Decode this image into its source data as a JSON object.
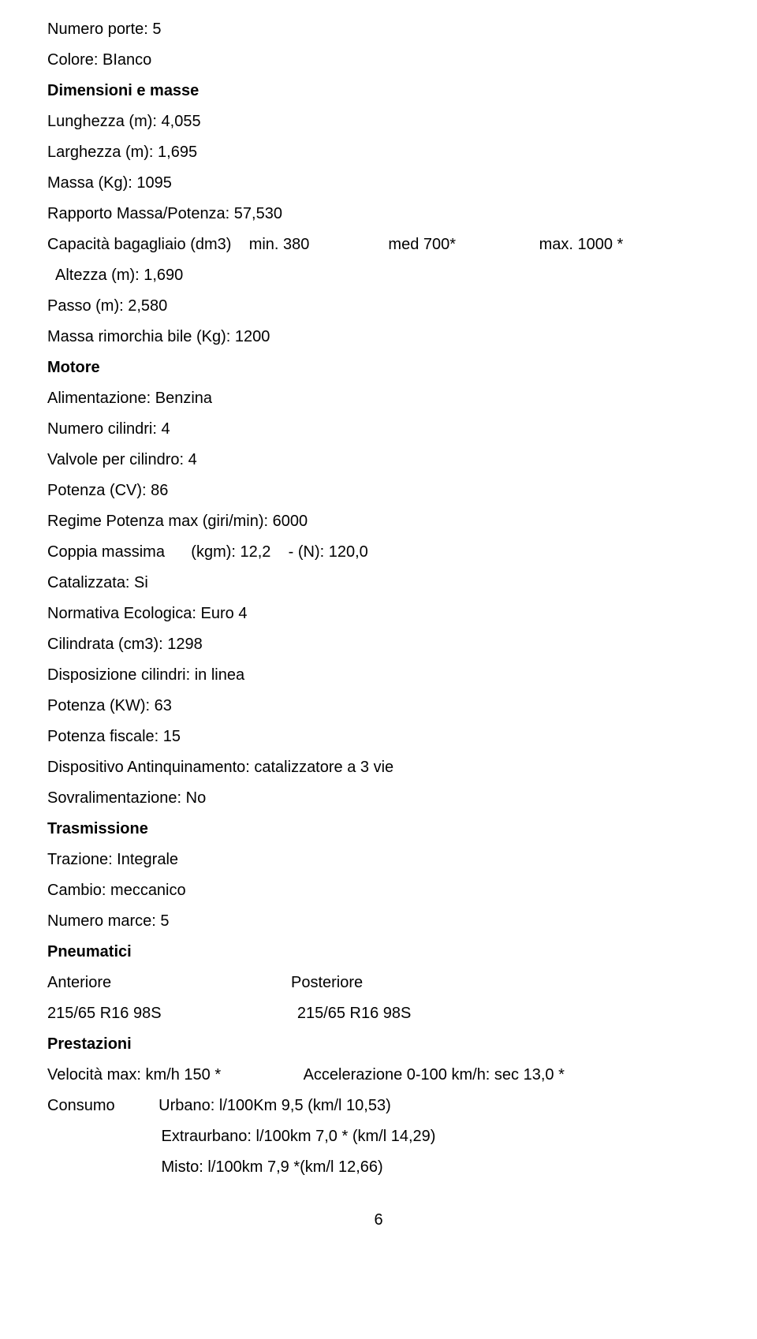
{
  "lines": {
    "l1": "Numero porte: 5",
    "l2": "Colore: BIanco",
    "l3": "Dimensioni e masse",
    "l4": "Lunghezza (m): 4,055",
    "l5": "Larghezza (m): 1,695",
    "l6": "Massa (Kg): 1095",
    "l7": "Rapporto Massa/Potenza: 57,530",
    "l8": "Capacità bagagliaio (dm3)    min. 380                  med 700*                   max. 1000 *",
    "l9": "  Altezza (m): 1,690",
    "l10": "Passo (m): 2,580",
    "l11": "Massa rimorchia bile (Kg): 1200",
    "l12": "Motore",
    "l13": "Alimentazione: Benzina",
    "l14": "Numero cilindri: 4",
    "l15": "Valvole per cilindro: 4",
    "l16": "Potenza (CV): 86",
    "l17": "Regime Potenza max (giri/min): 6000",
    "l18": "Coppia massima      (kgm): 12,2    - (N): 120,0",
    "l19": "Catalizzata: Si",
    "l20": "Normativa Ecologica: Euro 4",
    "l21": "Cilindrata (cm3): 1298",
    "l22": "Disposizione cilindri: in linea",
    "l23": "Potenza (KW): 63",
    "l24": "Potenza fiscale: 15",
    "l25": "Dispositivo Antinquinamento: catalizzatore a 3 vie",
    "l26": "Sovralimentazione: No",
    "l27": "Trasmissione",
    "l28": "Trazione: Integrale",
    "l29": "Cambio: meccanico",
    "l30": "Numero marce: 5",
    "l31": "Pneumatici",
    "l32": "Anteriore                                         Posteriore",
    "l33": "215/65 R16 98S                               215/65 R16 98S",
    "l34": "Prestazioni",
    "l35": "Velocità max: km/h 150 *                   Accelerazione 0-100 km/h: sec 13,0 *",
    "l36": "Consumo          Urbano: l/100Km 9,5 (km/l 10,53)",
    "l37": "                          Extraurbano: l/100km 7,0 * (km/l 14,29)",
    "l38": "                          Misto: l/100km 7,9 *(km/l 12,66)"
  },
  "pagenum": "6"
}
